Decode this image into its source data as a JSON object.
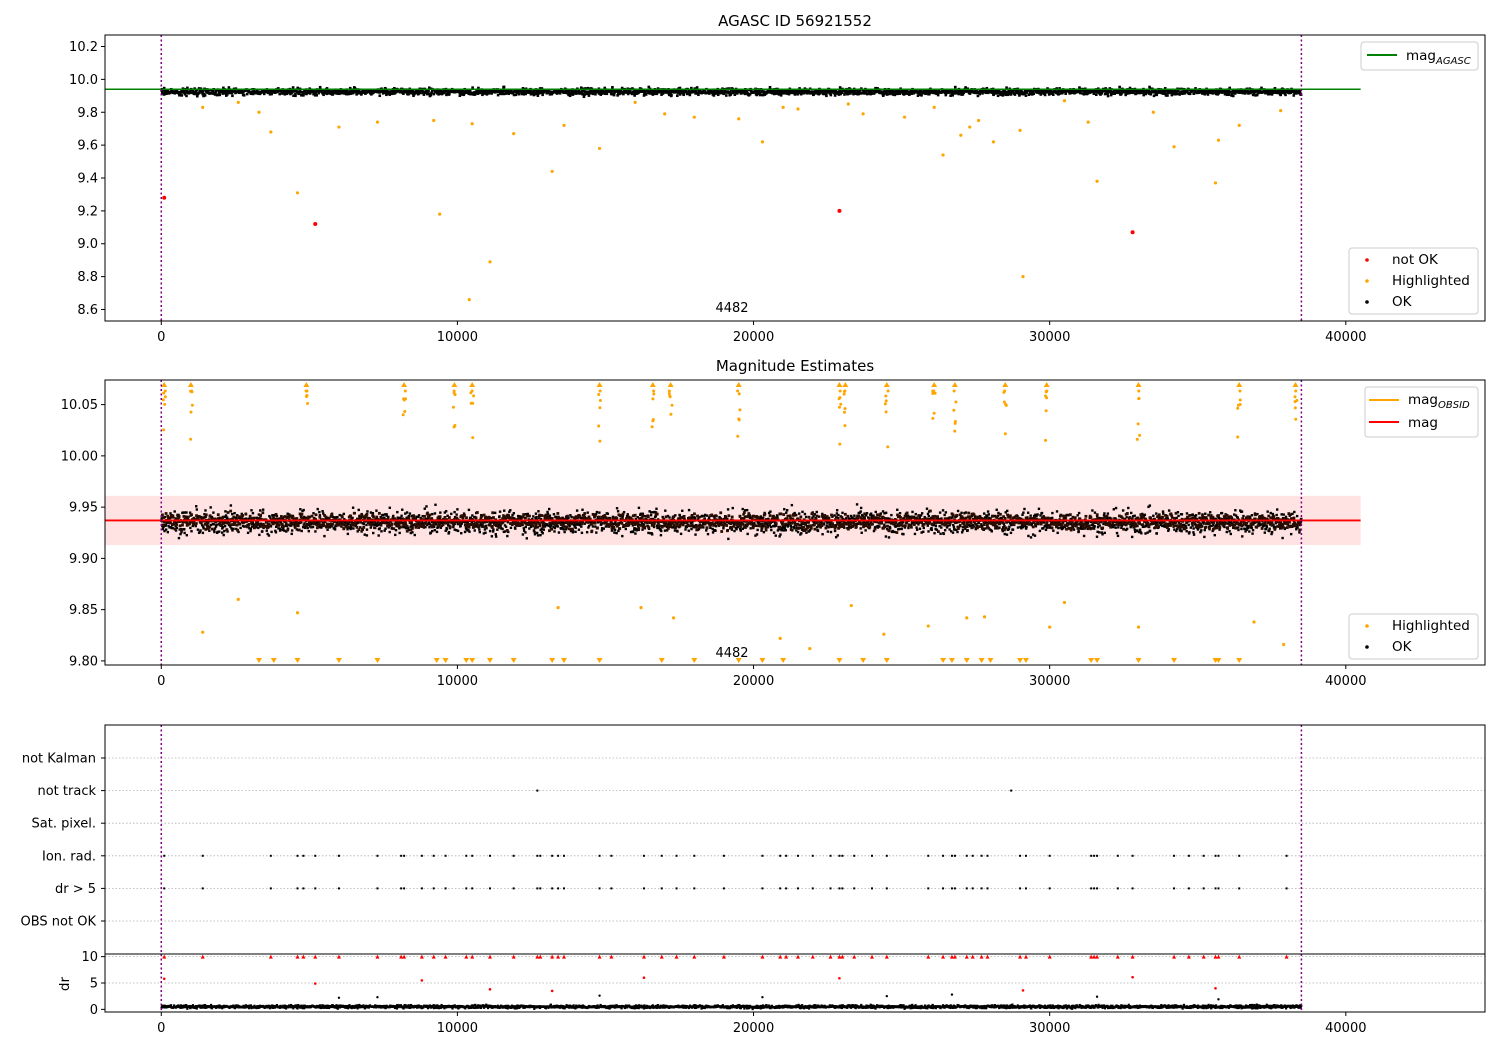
{
  "chart_data": [
    {
      "type": "scatter",
      "title": "AGASC ID 56921552",
      "xlim": [
        -1900,
        44700
      ],
      "ylim": [
        8.53,
        10.27
      ],
      "x_ticks": [
        0,
        10000,
        20000,
        30000,
        40000
      ],
      "x_tick_labels": [
        "0",
        "10000",
        "20000",
        "30000",
        "40000"
      ],
      "y_ticks": [
        8.6,
        8.8,
        9.0,
        9.2,
        9.4,
        9.6,
        9.8,
        10.0,
        10.2
      ],
      "y_tick_labels": [
        "8.6",
        "8.8",
        "9.0",
        "9.2",
        "9.4",
        "9.6",
        "9.8",
        "10.0",
        "10.2"
      ],
      "annotation": "4482",
      "vertical_lines_x": [
        0,
        38500
      ],
      "reference_lines": [
        {
          "name": "mag_AGASC",
          "y": 9.94,
          "x_range": [
            -1900,
            40500
          ],
          "color": "#008000"
        }
      ],
      "band": {
        "y_center": 9.925,
        "y_spread": 0.035,
        "x_range": [
          0,
          38500
        ]
      },
      "series": [
        {
          "name": "not OK",
          "color": "#ff0000",
          "points": [
            [
              100,
              9.28
            ],
            [
              5200,
              9.12
            ],
            [
              22900,
              9.2
            ],
            [
              32800,
              9.07
            ]
          ]
        },
        {
          "name": "Highlighted",
          "color": "#ffa500",
          "points": [
            [
              1400,
              9.83
            ],
            [
              2600,
              9.86
            ],
            [
              3300,
              9.8
            ],
            [
              3700,
              9.68
            ],
            [
              4600,
              9.31
            ],
            [
              6000,
              9.71
            ],
            [
              7300,
              9.74
            ],
            [
              9200,
              9.75
            ],
            [
              9400,
              9.18
            ],
            [
              10400,
              8.66
            ],
            [
              10500,
              9.73
            ],
            [
              11100,
              8.89
            ],
            [
              11900,
              9.67
            ],
            [
              13200,
              9.44
            ],
            [
              13600,
              9.72
            ],
            [
              14800,
              9.58
            ],
            [
              16000,
              9.86
            ],
            [
              17000,
              9.79
            ],
            [
              18000,
              9.77
            ],
            [
              19500,
              9.76
            ],
            [
              20300,
              9.62
            ],
            [
              21000,
              9.83
            ],
            [
              21500,
              9.82
            ],
            [
              23200,
              9.85
            ],
            [
              23700,
              9.79
            ],
            [
              25100,
              9.77
            ],
            [
              26100,
              9.83
            ],
            [
              26400,
              9.54
            ],
            [
              27000,
              9.66
            ],
            [
              27300,
              9.71
            ],
            [
              27600,
              9.75
            ],
            [
              28100,
              9.62
            ],
            [
              29000,
              9.69
            ],
            [
              29100,
              8.8
            ],
            [
              30500,
              9.87
            ],
            [
              31300,
              9.74
            ],
            [
              31600,
              9.38
            ],
            [
              33500,
              9.8
            ],
            [
              34200,
              9.59
            ],
            [
              35600,
              9.37
            ],
            [
              35700,
              9.63
            ],
            [
              36400,
              9.72
            ],
            [
              37800,
              9.81
            ]
          ]
        },
        {
          "name": "OK",
          "color": "#000000",
          "points": [
            [
              0,
              9.92
            ],
            [
              5000,
              9.93
            ],
            [
              10000,
              9.92
            ],
            [
              15000,
              9.93
            ],
            [
              20000,
              9.92
            ],
            [
              25000,
              9.93
            ],
            [
              30000,
              9.92
            ],
            [
              35000,
              9.93
            ],
            [
              38400,
              9.92
            ]
          ]
        }
      ],
      "legend_upper": {
        "position": "upper-right",
        "entries": [
          {
            "label": "mag",
            "subscript": "AGASC",
            "color": "#008000"
          }
        ]
      },
      "legend_lower": {
        "position": "lower-right",
        "entries": [
          {
            "label": "not OK",
            "color": "#ff0000"
          },
          {
            "label": "Highlighted",
            "color": "#ffa500"
          },
          {
            "label": "OK",
            "color": "#000000"
          }
        ]
      }
    },
    {
      "type": "scatter",
      "title": "Magnitude Estimates",
      "xlim": [
        -1900,
        44700
      ],
      "ylim": [
        9.796,
        10.074
      ],
      "x_ticks": [
        0,
        10000,
        20000,
        30000,
        40000
      ],
      "x_tick_labels": [
        "0",
        "10000",
        "20000",
        "30000",
        "40000"
      ],
      "y_ticks": [
        9.8,
        9.85,
        9.9,
        9.95,
        10.0,
        10.05
      ],
      "y_tick_labels": [
        "9.80",
        "9.85",
        "9.90",
        "9.95",
        "10.00",
        "10.05"
      ],
      "annotation": "4482",
      "vertical_lines_x": [
        0,
        38500
      ],
      "reference_lines": [
        {
          "name": "mag",
          "y": 9.937,
          "x_range": [
            -1900,
            40500
          ],
          "color": "#ff0000"
        }
      ],
      "shaded_band": {
        "y_low": 9.913,
        "y_high": 9.961,
        "x_range": [
          -1900,
          40500
        ],
        "color": "#ffb0b0"
      },
      "band": {
        "y_center": 9.935,
        "y_spread": 0.02,
        "x_range": [
          0,
          38500
        ]
      },
      "highlighted_top_clipped_x": [
        100,
        1000,
        4900,
        8200,
        9900,
        10500,
        14800,
        16600,
        17200,
        19500,
        22900,
        23100,
        24500,
        26100,
        26800,
        28500,
        29900,
        33000,
        36400,
        38300
      ],
      "highlighted_bottom_clipped_x": [
        3300,
        3800,
        4600,
        6000,
        7300,
        9300,
        9600,
        10300,
        10500,
        11100,
        11900,
        13200,
        13600,
        14800,
        16900,
        18000,
        19500,
        20300,
        21000,
        22900,
        23700,
        24500,
        26400,
        26700,
        27200,
        27700,
        28000,
        29000,
        29200,
        31400,
        31600,
        33000,
        34200,
        35600,
        35700,
        36400
      ],
      "series": [
        {
          "name": "Highlighted",
          "color": "#ffa500",
          "points": [
            [
              1400,
              9.828
            ],
            [
              2600,
              9.86
            ],
            [
              4600,
              9.847
            ],
            [
              13400,
              9.852
            ],
            [
              16200,
              9.852
            ],
            [
              17300,
              9.842
            ],
            [
              20900,
              9.822
            ],
            [
              21900,
              9.812
            ],
            [
              23300,
              9.854
            ],
            [
              24400,
              9.826
            ],
            [
              25900,
              9.834
            ],
            [
              27200,
              9.842
            ],
            [
              27800,
              9.843
            ],
            [
              30000,
              9.833
            ],
            [
              30500,
              9.857
            ],
            [
              33000,
              9.833
            ],
            [
              36900,
              9.838
            ],
            [
              37900,
              9.816
            ]
          ]
        },
        {
          "name": "OK",
          "color": "#000000",
          "points": [
            [
              0,
              9.93
            ],
            [
              5000,
              9.94
            ],
            [
              10000,
              9.93
            ],
            [
              15000,
              9.94
            ],
            [
              20000,
              9.93
            ],
            [
              25000,
              9.94
            ],
            [
              30000,
              9.93
            ],
            [
              35000,
              9.94
            ],
            [
              38400,
              9.93
            ]
          ]
        }
      ],
      "legend_upper": {
        "position": "upper-right",
        "entries": [
          {
            "label": "mag",
            "subscript": "OBSID",
            "color": "#ffa500"
          },
          {
            "label": "mag",
            "subscript": "",
            "color": "#ff0000"
          }
        ]
      },
      "legend_lower": {
        "position": "lower-right",
        "entries": [
          {
            "label": "Highlighted",
            "color": "#ffa500"
          },
          {
            "label": "OK",
            "color": "#000000"
          }
        ]
      }
    },
    {
      "type": "scatter",
      "title": "",
      "xlim": [
        -1900,
        44700
      ],
      "categories": [
        "not Kalman",
        "not track",
        "Sat. pixel.",
        "Ion. rad.",
        "dr > 5",
        "OBS not OK"
      ],
      "vertical_lines_x": [
        0,
        38500
      ],
      "flag_events": {
        "not track": [
          12700,
          28700
        ],
        "Ion. rad.": [
          100,
          1400,
          3700,
          4600,
          4800,
          5200,
          6000,
          7300,
          8100,
          8200,
          8800,
          9200,
          9600,
          10300,
          10500,
          11100,
          11900,
          12700,
          12800,
          13200,
          13400,
          13600,
          14800,
          15200,
          16300,
          16900,
          17400,
          18000,
          19000,
          20300,
          20900,
          21100,
          21500,
          22000,
          22600,
          22900,
          23000,
          23400,
          24000,
          24500,
          25900,
          26400,
          26700,
          26800,
          27200,
          27400,
          27700,
          27900,
          29000,
          29200,
          30000,
          31400,
          31500,
          31600,
          32300,
          32800,
          34200,
          34700,
          35200,
          35600,
          35700,
          36400,
          38000
        ],
        "dr > 5": [
          100,
          1400,
          3700,
          4600,
          4800,
          5200,
          6000,
          7300,
          8100,
          8200,
          8800,
          9200,
          9600,
          10300,
          10500,
          11100,
          11900,
          12700,
          12800,
          13200,
          13400,
          13600,
          14800,
          15200,
          16300,
          16900,
          17400,
          18000,
          19000,
          20300,
          20900,
          21100,
          21500,
          22000,
          22600,
          22900,
          23000,
          23400,
          24000,
          24500,
          25900,
          26400,
          26700,
          26800,
          27200,
          27400,
          27700,
          27900,
          29000,
          29200,
          30000,
          31400,
          31500,
          31600,
          32300,
          32800,
          34200,
          34700,
          35200,
          35600,
          35700,
          36400,
          38000
        ]
      }
    },
    {
      "type": "scatter",
      "title": "",
      "xlim": [
        -1900,
        44700
      ],
      "ylim": [
        -0.5,
        10.5
      ],
      "ylabel": "dr",
      "x_ticks": [
        0,
        10000,
        20000,
        30000,
        40000
      ],
      "x_tick_labels": [
        "0",
        "10000",
        "20000",
        "30000",
        "40000"
      ],
      "y_ticks": [
        0,
        5,
        10
      ],
      "y_tick_labels": [
        "0",
        "5",
        "10"
      ],
      "vertical_lines_x": [
        0,
        38500
      ],
      "band": {
        "y_center": 0.5,
        "y_spread": 0.5,
        "x_range": [
          0,
          38500
        ]
      },
      "clipped_at_10_x": [
        100,
        1400,
        3700,
        4600,
        4800,
        5200,
        6000,
        7300,
        8100,
        8200,
        8800,
        9200,
        9600,
        10300,
        10500,
        11100,
        11900,
        12700,
        12800,
        13200,
        13400,
        13600,
        14800,
        15200,
        16300,
        16900,
        17400,
        18000,
        19000,
        20300,
        20900,
        21100,
        21500,
        22000,
        22600,
        22900,
        23000,
        23400,
        24000,
        24500,
        25900,
        26400,
        26700,
        26800,
        27200,
        27400,
        27700,
        27900,
        29000,
        29200,
        30000,
        31400,
        31500,
        31600,
        32300,
        32800,
        34200,
        34700,
        35200,
        35600,
        35700,
        36400,
        38000
      ],
      "series": [
        {
          "name": "dr > 5",
          "color": "#ff0000",
          "points": [
            [
              100,
              5.8
            ],
            [
              5200,
              4.9
            ],
            [
              8800,
              5.5
            ],
            [
              11100,
              3.8
            ],
            [
              13200,
              3.5
            ],
            [
              16300,
              6.0
            ],
            [
              22900,
              5.9
            ],
            [
              29100,
              3.6
            ],
            [
              32800,
              6.1
            ],
            [
              35600,
              4.0
            ]
          ]
        },
        {
          "name": "dr",
          "color": "#000000",
          "points": [
            [
              6000,
              2.2
            ],
            [
              7300,
              2.3
            ],
            [
              14800,
              2.6
            ],
            [
              20300,
              2.3
            ],
            [
              24500,
              2.5
            ],
            [
              26700,
              2.8
            ],
            [
              31600,
              2.4
            ],
            [
              35700,
              1.9
            ]
          ]
        }
      ]
    }
  ]
}
